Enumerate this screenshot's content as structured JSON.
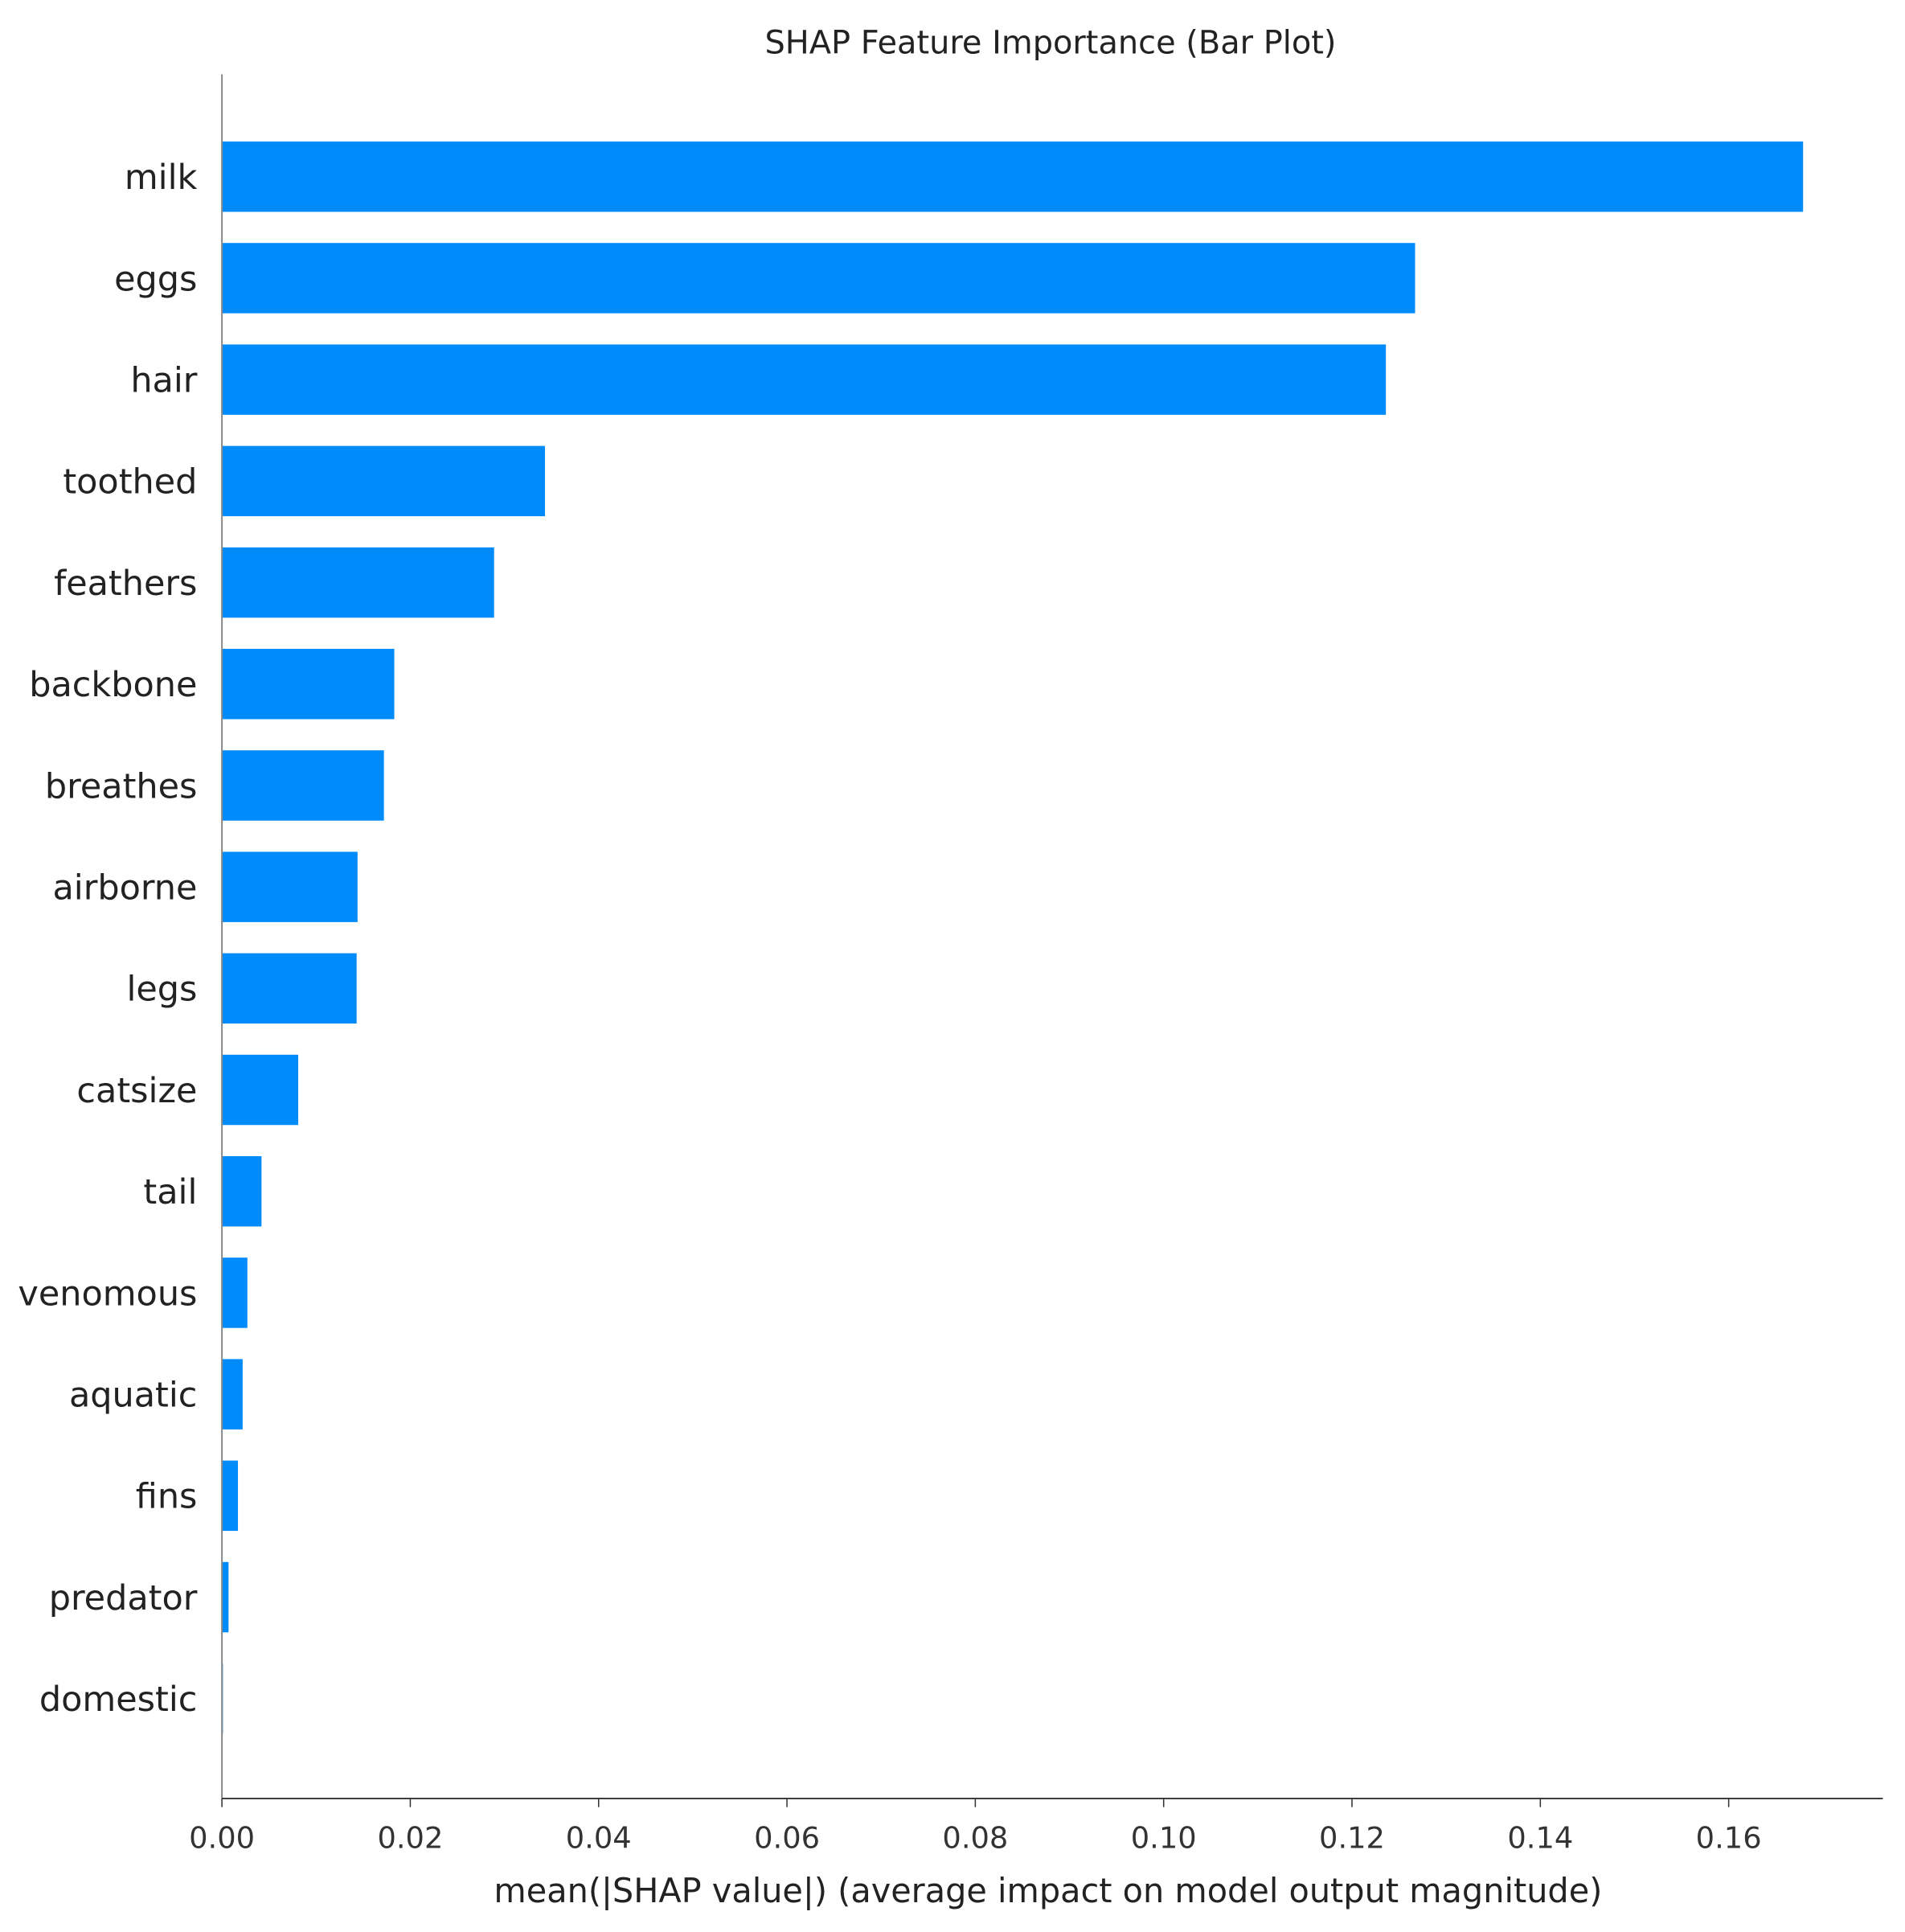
{
  "chart_data": {
    "type": "bar",
    "orientation": "horizontal",
    "title": "SHAP Feature Importance (Bar Plot)",
    "xlabel": "mean(|SHAP value|) (average impact on model output magnitude)",
    "ylabel": "",
    "categories": [
      "milk",
      "eggs",
      "hair",
      "toothed",
      "feathers",
      "backbone",
      "breathes",
      "airborne",
      "legs",
      "catsize",
      "tail",
      "venomous",
      "aquatic",
      "fins",
      "predator",
      "domestic"
    ],
    "values": [
      0.1679,
      0.1267,
      0.1236,
      0.0343,
      0.0289,
      0.0183,
      0.0172,
      0.0144,
      0.0143,
      0.0081,
      0.0042,
      0.0027,
      0.0022,
      0.0017,
      0.0007,
      0.0001
    ],
    "xlim": [
      0,
      0.1763
    ],
    "xticks": [
      0.0,
      0.02,
      0.04,
      0.06,
      0.08,
      0.1,
      0.12,
      0.14,
      0.16
    ],
    "xtick_labels": [
      "0.00",
      "0.02",
      "0.04",
      "0.06",
      "0.08",
      "0.10",
      "0.12",
      "0.14",
      "0.16"
    ],
    "grid": false,
    "legend": "none",
    "bar_color": "#008bfb"
  }
}
